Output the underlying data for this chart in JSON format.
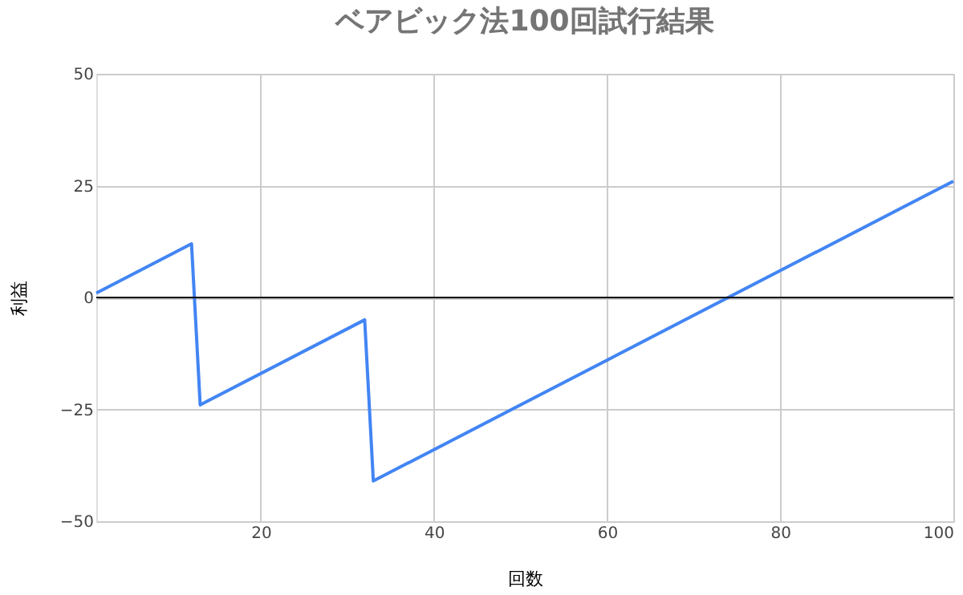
{
  "chart_data": {
    "type": "line",
    "title": "ベアビック法100回試行結果",
    "xlabel": "回数",
    "ylabel": "利益",
    "x": [
      1,
      12,
      13,
      32,
      33,
      100
    ],
    "series": [
      {
        "color": "#4285f4",
        "values": [
          1,
          12,
          -24,
          -5,
          -41,
          26
        ]
      }
    ],
    "xlim": [
      1,
      100
    ],
    "xticks": [
      20,
      40,
      60,
      80,
      100
    ],
    "ylim": [
      -50,
      50
    ],
    "yticks": [
      -50,
      -25,
      0,
      25,
      50
    ],
    "grid": true,
    "marker": "none",
    "line_style": "solid",
    "ref_lines": [
      {
        "axis": "y",
        "value": 0,
        "color": "#000000"
      }
    ]
  }
}
